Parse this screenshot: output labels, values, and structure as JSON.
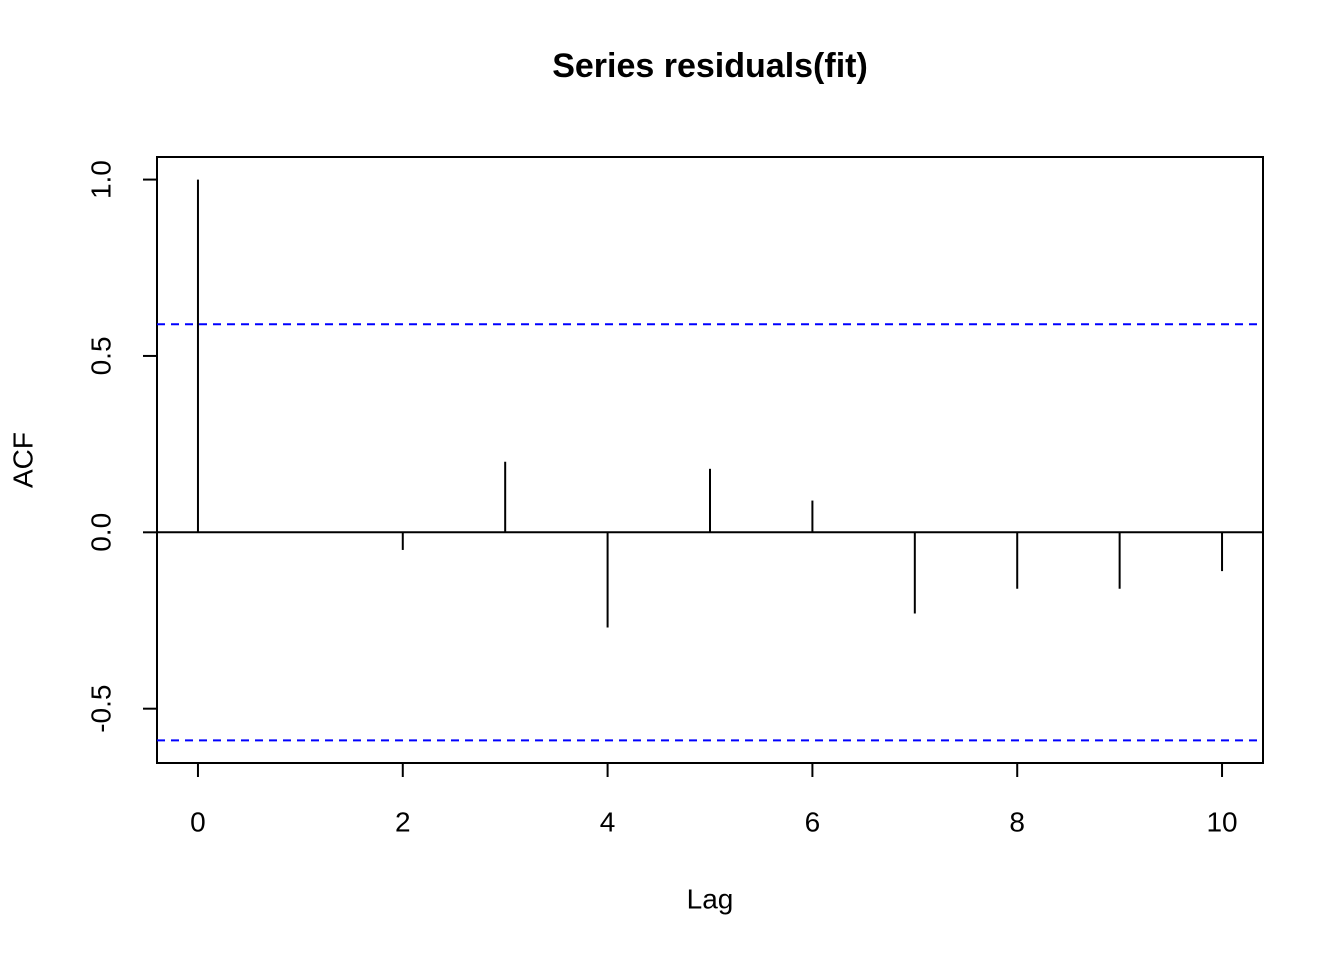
{
  "chart_data": {
    "type": "acf",
    "title": "Series  residuals(fit)",
    "x_label": "Lag",
    "y_label": "ACF",
    "x": [
      0,
      1,
      2,
      3,
      4,
      5,
      6,
      7,
      8,
      9,
      10
    ],
    "values": [
      1.0,
      0.0,
      -0.05,
      0.2,
      -0.27,
      0.18,
      0.09,
      -0.23,
      -0.16,
      -0.16,
      -0.11
    ],
    "color": "#000000",
    "ci_upper": 0.59,
    "ci_lower": -0.59,
    "ci_color": "#0000ff",
    "xlim": [
      -0.4,
      10.4
    ],
    "ylim": [
      -0.654,
      1.064
    ],
    "xticks": [
      0,
      2,
      4,
      6,
      8,
      10
    ],
    "yticks": [
      -0.5,
      {
        "value": 0,
        "label": "0.0"
      },
      0.5,
      {
        "value": 1,
        "label": "1.0"
      }
    ],
    "zero_line": true
  }
}
